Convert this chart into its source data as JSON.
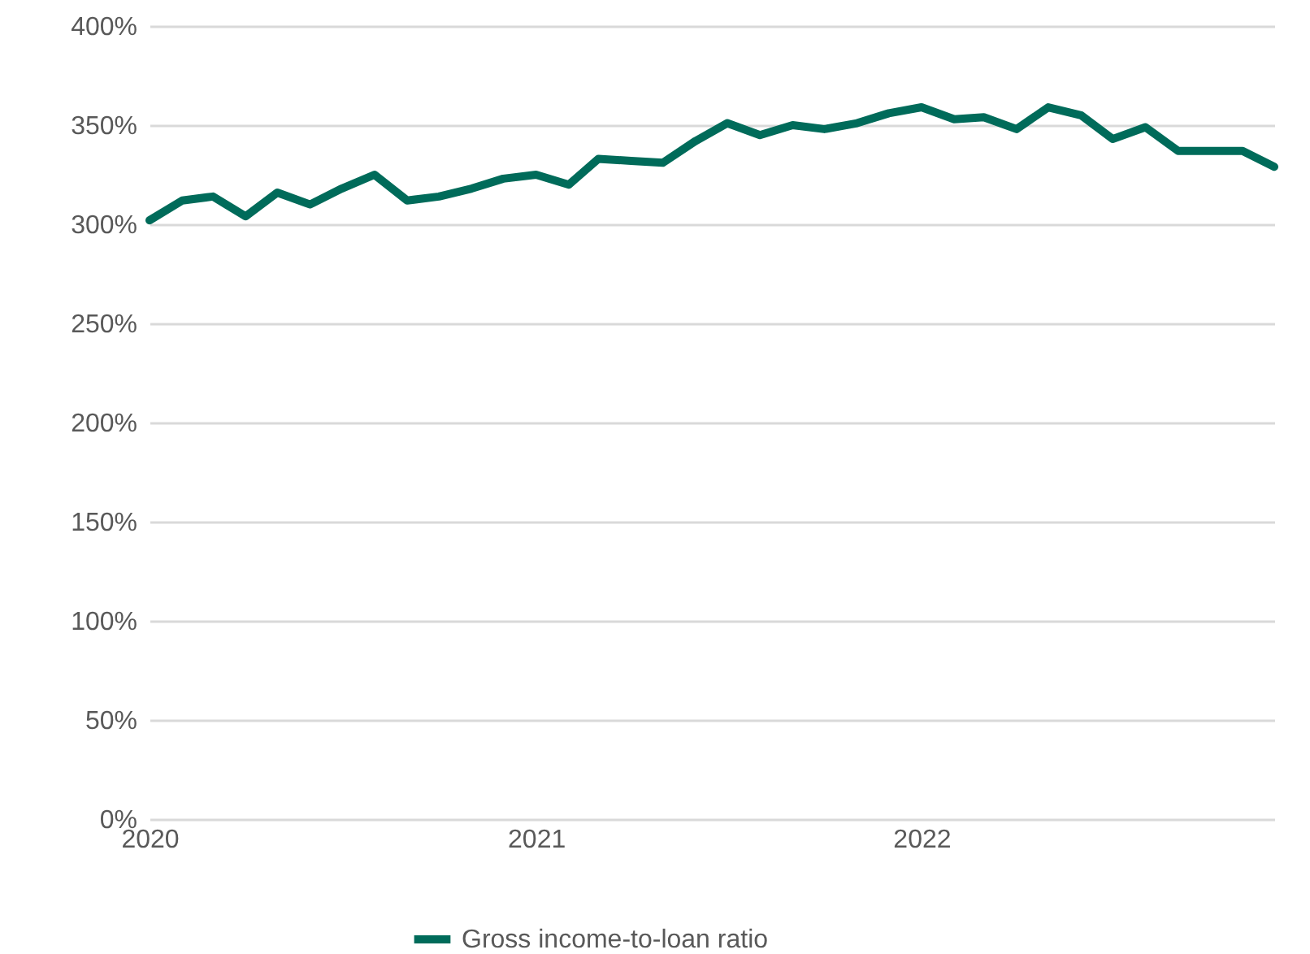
{
  "chart_data": {
    "type": "line",
    "x": [
      "2020-01",
      "2020-02",
      "2020-03",
      "2020-04",
      "2020-05",
      "2020-06",
      "2020-07",
      "2020-08",
      "2020-09",
      "2020-10",
      "2020-11",
      "2020-12",
      "2021-01",
      "2021-02",
      "2021-03",
      "2021-04",
      "2021-05",
      "2021-06",
      "2021-07",
      "2021-08",
      "2021-09",
      "2021-10",
      "2021-11",
      "2021-12",
      "2022-01",
      "2022-02",
      "2022-03",
      "2022-04",
      "2022-05",
      "2022-06",
      "2022-07",
      "2022-08",
      "2022-09",
      "2022-10",
      "2022-11",
      "2022-12"
    ],
    "series": [
      {
        "name": "Gross income-to-loan ratio",
        "color": "#006b5a",
        "values": [
          302,
          312,
          314,
          304,
          316,
          310,
          318,
          325,
          312,
          314,
          318,
          323,
          325,
          320,
          333,
          332,
          331,
          342,
          351,
          345,
          350,
          348,
          351,
          356,
          359,
          353,
          354,
          348,
          359,
          355,
          343,
          349,
          337,
          337,
          337,
          329
        ]
      }
    ],
    "xlim": [
      "2020-01",
      "2022-12"
    ],
    "xticks": [
      "2020",
      "2021",
      "2022"
    ],
    "ylim": [
      0,
      400
    ],
    "yticks": [
      {
        "value": 0,
        "label": "0%"
      },
      {
        "value": 50,
        "label": "50%"
      },
      {
        "value": 100,
        "label": "100%"
      },
      {
        "value": 150,
        "label": "150%"
      },
      {
        "value": 200,
        "label": "200%"
      },
      {
        "value": 250,
        "label": "250%"
      },
      {
        "value": 300,
        "label": "300%"
      },
      {
        "value": 350,
        "label": "350%"
      },
      {
        "value": 400,
        "label": "400%"
      }
    ],
    "grid": "y",
    "legend": "bottom",
    "line_style": "solid",
    "marker": "none"
  }
}
